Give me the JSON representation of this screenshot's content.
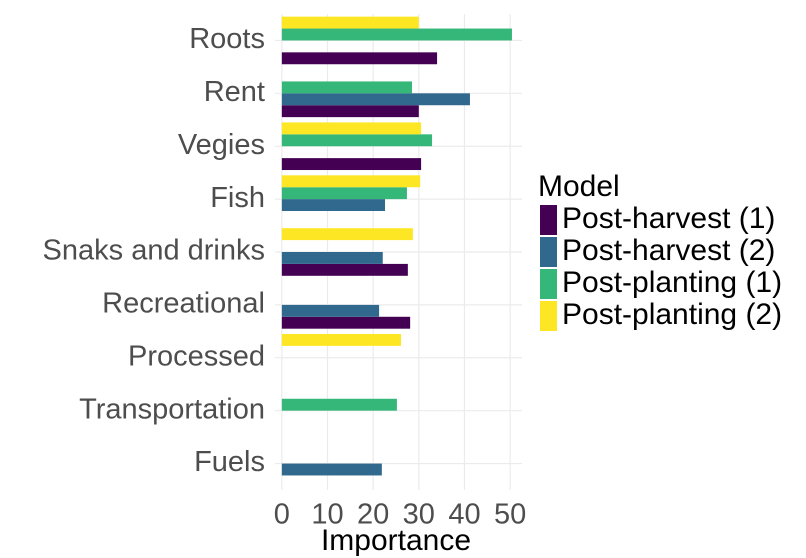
{
  "chart_data": {
    "type": "bar",
    "orientation": "horizontal",
    "x_label": "Importance",
    "categories": [
      "Roots",
      "Rent",
      "Vegies",
      "Fish",
      "Snaks and drinks",
      "Recreational",
      "Processed",
      "Transportation",
      "Fuels"
    ],
    "series": [
      {
        "name": "Post-harvest (1)",
        "color": "#440154",
        "values": [
          34,
          30,
          30.5,
          null,
          27.6,
          28.1,
          null,
          null,
          null
        ]
      },
      {
        "name": "Post-harvest (2)",
        "color": "#31688e",
        "values": [
          null,
          41.2,
          null,
          22.6,
          22.1,
          21.3,
          null,
          null,
          21.9
        ]
      },
      {
        "name": "Post-planting (1)",
        "color": "#35b779",
        "values": [
          50.4,
          28.5,
          32.9,
          27.4,
          null,
          null,
          null,
          25.2,
          null
        ]
      },
      {
        "name": "Post-planting (2)",
        "color": "#fde725",
        "values": [
          30,
          null,
          30.5,
          30.3,
          28.7,
          null,
          26.1,
          null,
          null
        ]
      }
    ],
    "legend_title": "Model",
    "xlim": [
      -1.5,
      52.6
    ],
    "xticks": [
      0,
      10,
      20,
      30,
      40,
      50
    ],
    "grid": true
  }
}
